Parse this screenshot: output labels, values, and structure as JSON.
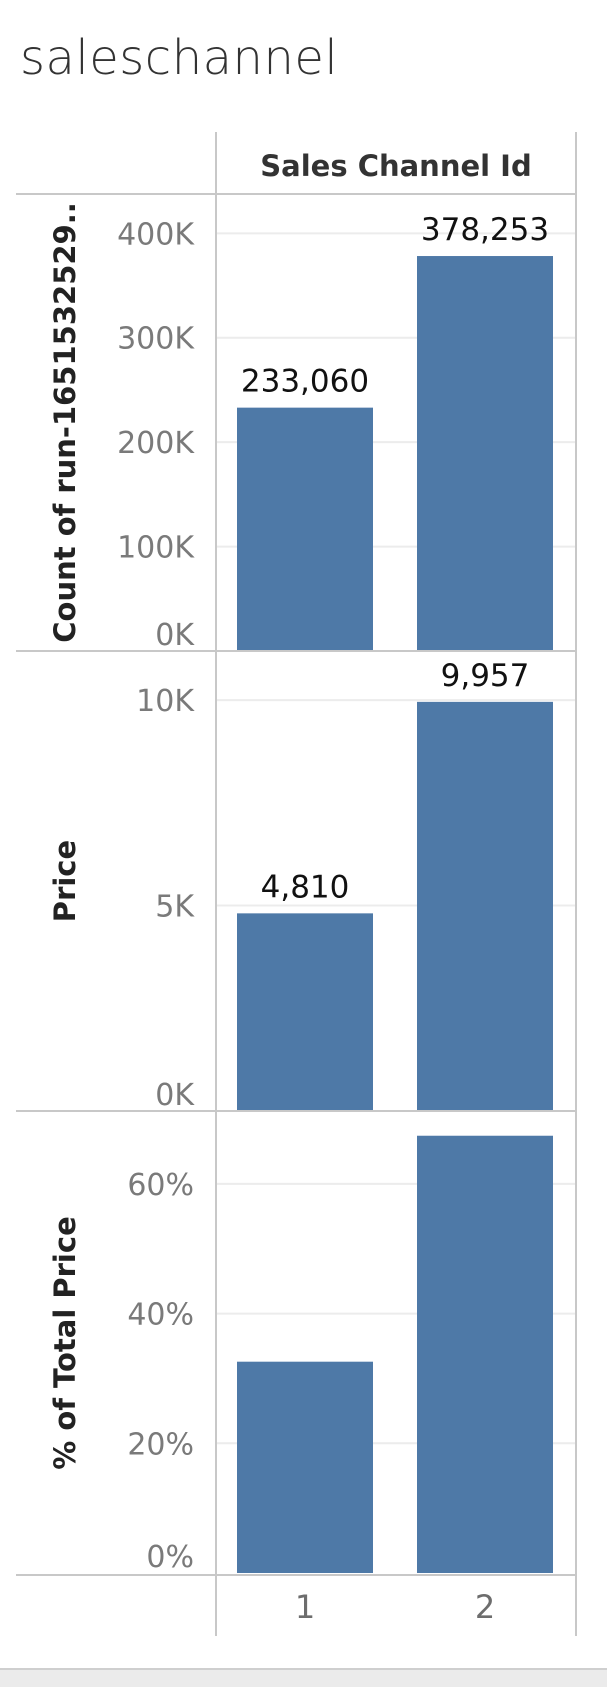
{
  "sheet_title": "saleschannel",
  "colors": {
    "bar": "#4e79a7",
    "grid": "#ececec",
    "border": "#c8c8c8"
  },
  "chart_data": {
    "type": "bar",
    "column_header": "Sales Channel Id",
    "categories": [
      "1",
      "2"
    ],
    "panes": [
      {
        "ylabel": "Count of run-1651532529..",
        "values": [
          233060,
          378253
        ],
        "data_labels": [
          "233,060",
          "378,253"
        ],
        "ylim": [
          0,
          430000
        ],
        "ticks": [
          0,
          100000,
          200000,
          300000,
          400000
        ],
        "tick_labels": [
          "0K",
          "100K",
          "200K",
          "300K",
          "400K"
        ]
      },
      {
        "ylabel": "Price",
        "values": [
          4810,
          9957
        ],
        "data_labels": [
          "4,810",
          "9,957"
        ],
        "ylim": [
          0,
          11000
        ],
        "ticks": [
          0,
          5000,
          10000
        ],
        "tick_labels": [
          "0K",
          "5K",
          "10K"
        ]
      },
      {
        "ylabel": "% of Total Price",
        "values": [
          32.58,
          67.42
        ],
        "data_labels": [],
        "ylim": [
          0,
          70
        ],
        "ticks": [
          0,
          20,
          40,
          60
        ],
        "tick_labels": [
          "0%",
          "20%",
          "40%",
          "60%"
        ]
      }
    ],
    "grid": true
  }
}
